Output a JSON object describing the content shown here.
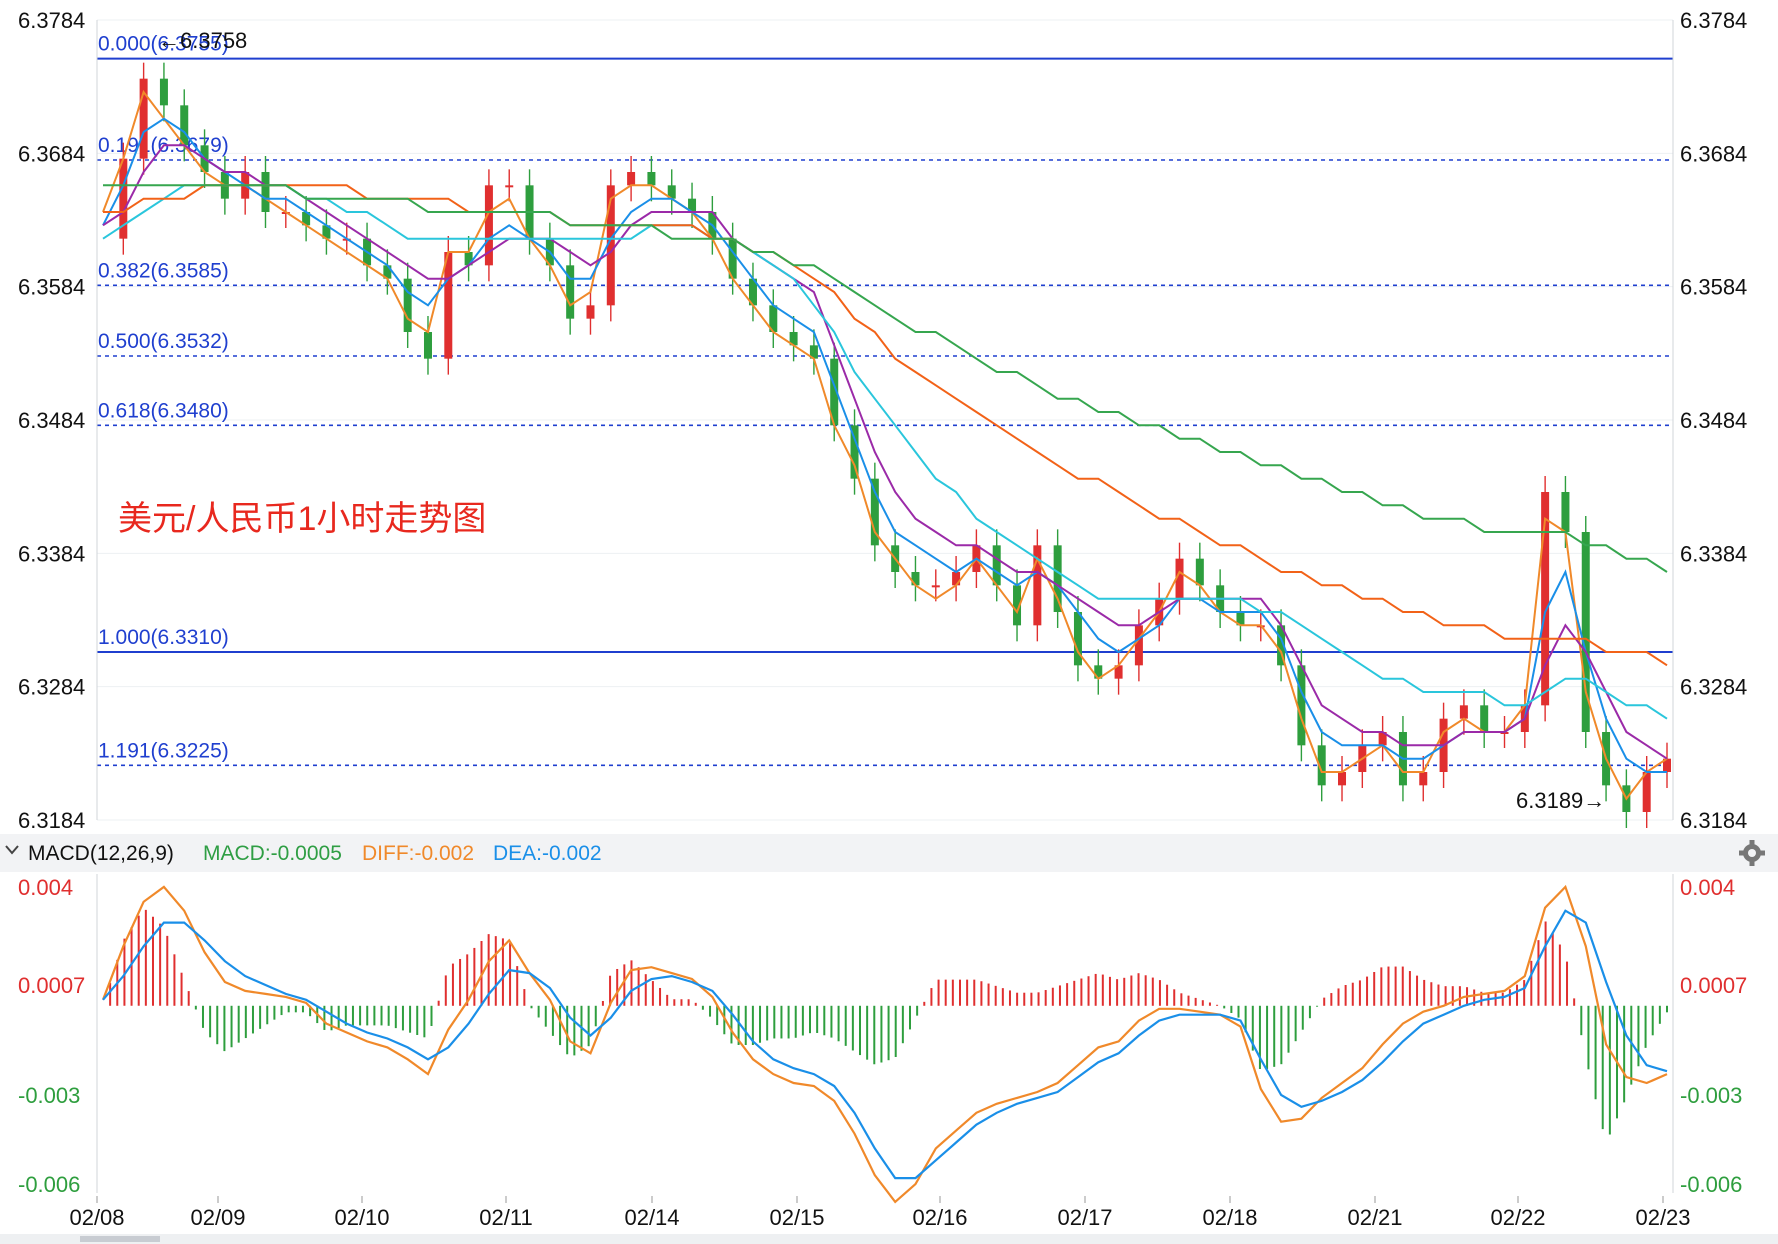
{
  "chart_data": {
    "type": "candlestick",
    "title": "美元/人民币1小时走势图",
    "price_axis": {
      "ticks": [
        "6.3784",
        "6.3684",
        "6.3584",
        "6.3484",
        "6.3384",
        "6.3284",
        "6.3184"
      ],
      "tick_values": [
        6.3784,
        6.3684,
        6.3584,
        6.3484,
        6.3384,
        6.3284,
        6.3184
      ],
      "range": [
        6.3184,
        6.3784
      ]
    },
    "date_axis": {
      "ticks": [
        "02/08",
        "02/09",
        "02/10",
        "02/11",
        "02/14",
        "02/15",
        "02/16",
        "02/17",
        "02/18",
        "02/21",
        "02/22",
        "02/23"
      ]
    },
    "fibonacci": [
      {
        "label": "0.000(6.3755)",
        "level": 6.3755,
        "style": "solid"
      },
      {
        "label": "0.191(6.3679)",
        "level": 6.3679,
        "style": "dashed"
      },
      {
        "label": "0.382(6.3585)",
        "level": 6.3585,
        "style": "dashed"
      },
      {
        "label": "0.500(6.3532)",
        "level": 6.3532,
        "style": "dashed"
      },
      {
        "label": "0.618(6.3480)",
        "level": 6.348,
        "style": "dashed"
      },
      {
        "label": "1.000(6.3310)",
        "level": 6.331,
        "style": "solid"
      },
      {
        "label": "1.191(6.3225)",
        "level": 6.3225,
        "style": "dashed"
      }
    ],
    "annotations": {
      "high": "←6.3758",
      "low": "6.3189→"
    },
    "moving_averages": [
      {
        "color": "#f0892a",
        "values": [
          6.364,
          6.368,
          6.373,
          6.371,
          6.369,
          6.367,
          6.366,
          6.366,
          6.365,
          6.364,
          6.363,
          6.362,
          6.361,
          6.36,
          6.359,
          6.356,
          6.355,
          6.361,
          6.361,
          6.364,
          6.365,
          6.362,
          6.36,
          6.357,
          6.358,
          6.365,
          6.366,
          6.366,
          6.365,
          6.364,
          6.362,
          6.359,
          6.357,
          6.355,
          6.354,
          6.353,
          6.348,
          6.345,
          6.34,
          6.338,
          6.336,
          6.335,
          6.336,
          6.338,
          6.336,
          6.334,
          6.338,
          6.335,
          6.331,
          6.329,
          6.33,
          6.332,
          6.334,
          6.337,
          6.336,
          6.334,
          6.333,
          6.333,
          6.331,
          6.326,
          6.322,
          6.322,
          6.323,
          6.324,
          6.322,
          6.322,
          6.325,
          6.326,
          6.325,
          6.325,
          6.327,
          6.341,
          6.34,
          6.328,
          6.323,
          6.32,
          6.322,
          6.323
        ]
      },
      {
        "color": "#1a8fe8",
        "values": [
          6.363,
          6.366,
          6.37,
          6.371,
          6.37,
          6.368,
          6.367,
          6.366,
          6.365,
          6.365,
          6.364,
          6.363,
          6.362,
          6.361,
          6.36,
          6.358,
          6.357,
          6.359,
          6.36,
          6.362,
          6.363,
          6.362,
          6.361,
          6.359,
          6.359,
          6.362,
          6.364,
          6.365,
          6.365,
          6.364,
          6.363,
          6.361,
          6.359,
          6.357,
          6.356,
          6.355,
          6.351,
          6.347,
          6.343,
          6.34,
          6.339,
          6.338,
          6.337,
          6.338,
          6.337,
          6.336,
          6.337,
          6.336,
          6.334,
          6.332,
          6.331,
          6.332,
          6.333,
          6.335,
          6.335,
          6.334,
          6.334,
          6.334,
          6.332,
          6.328,
          6.325,
          6.324,
          6.324,
          6.324,
          6.323,
          6.323,
          6.324,
          6.325,
          6.325,
          6.325,
          6.326,
          6.334,
          6.337,
          6.331,
          6.326,
          6.323,
          6.322,
          6.322
        ]
      },
      {
        "color": "#9b2aa8",
        "values": [
          6.363,
          6.364,
          6.367,
          6.369,
          6.369,
          6.368,
          6.367,
          6.367,
          6.366,
          6.366,
          6.365,
          6.364,
          6.363,
          6.362,
          6.361,
          6.36,
          6.359,
          6.359,
          6.36,
          6.361,
          6.362,
          6.362,
          6.362,
          6.361,
          6.36,
          6.361,
          6.363,
          6.364,
          6.364,
          6.364,
          6.364,
          6.362,
          6.361,
          6.36,
          6.359,
          6.358,
          6.354,
          6.35,
          6.346,
          6.343,
          6.341,
          6.34,
          6.339,
          6.339,
          6.338,
          6.337,
          6.337,
          6.336,
          6.335,
          6.334,
          6.333,
          6.333,
          6.334,
          6.335,
          6.335,
          6.335,
          6.335,
          6.335,
          6.333,
          6.33,
          6.327,
          6.326,
          6.325,
          6.325,
          6.324,
          6.324,
          6.324,
          6.325,
          6.325,
          6.325,
          6.326,
          6.33,
          6.333,
          6.331,
          6.328,
          6.325,
          6.324,
          6.323
        ]
      },
      {
        "color": "#2ac6dc",
        "values": [
          6.362,
          6.363,
          6.364,
          6.365,
          6.366,
          6.366,
          6.366,
          6.366,
          6.366,
          6.366,
          6.365,
          6.365,
          6.364,
          6.364,
          6.363,
          6.362,
          6.362,
          6.362,
          6.362,
          6.362,
          6.362,
          6.362,
          6.362,
          6.362,
          6.362,
          6.362,
          6.362,
          6.363,
          6.363,
          6.363,
          6.362,
          6.362,
          6.361,
          6.36,
          6.359,
          6.357,
          6.355,
          6.352,
          6.35,
          6.348,
          6.346,
          6.344,
          6.343,
          6.341,
          6.34,
          6.339,
          6.338,
          6.337,
          6.336,
          6.335,
          6.335,
          6.335,
          6.335,
          6.335,
          6.335,
          6.335,
          6.335,
          6.334,
          6.334,
          6.333,
          6.332,
          6.331,
          6.33,
          6.329,
          6.329,
          6.328,
          6.328,
          6.328,
          6.328,
          6.327,
          6.327,
          6.328,
          6.329,
          6.329,
          6.328,
          6.327,
          6.327,
          6.326
        ]
      },
      {
        "color": "#f26218",
        "values": [
          6.364,
          6.364,
          6.365,
          6.365,
          6.365,
          6.366,
          6.366,
          6.366,
          6.366,
          6.366,
          6.366,
          6.366,
          6.366,
          6.365,
          6.365,
          6.365,
          6.365,
          6.365,
          6.364,
          6.364,
          6.364,
          6.364,
          6.364,
          6.363,
          6.363,
          6.363,
          6.363,
          6.363,
          6.363,
          6.363,
          6.362,
          6.362,
          6.361,
          6.361,
          6.36,
          6.359,
          6.358,
          6.356,
          6.355,
          6.353,
          6.352,
          6.351,
          6.35,
          6.349,
          6.348,
          6.347,
          6.346,
          6.345,
          6.344,
          6.344,
          6.343,
          6.342,
          6.341,
          6.341,
          6.34,
          6.339,
          6.339,
          6.338,
          6.337,
          6.337,
          6.336,
          6.336,
          6.335,
          6.335,
          6.334,
          6.334,
          6.333,
          6.333,
          6.333,
          6.332,
          6.332,
          6.332,
          6.332,
          6.332,
          6.331,
          6.331,
          6.331,
          6.33
        ]
      },
      {
        "color": "#36a64f",
        "values": [
          6.366,
          6.366,
          6.366,
          6.366,
          6.366,
          6.366,
          6.366,
          6.366,
          6.366,
          6.366,
          6.365,
          6.365,
          6.365,
          6.365,
          6.365,
          6.365,
          6.364,
          6.364,
          6.364,
          6.364,
          6.364,
          6.364,
          6.364,
          6.363,
          6.363,
          6.363,
          6.363,
          6.363,
          6.362,
          6.362,
          6.362,
          6.362,
          6.361,
          6.361,
          6.36,
          6.36,
          6.359,
          6.358,
          6.357,
          6.356,
          6.355,
          6.355,
          6.354,
          6.353,
          6.352,
          6.352,
          6.351,
          6.35,
          6.35,
          6.349,
          6.349,
          6.348,
          6.348,
          6.347,
          6.347,
          6.346,
          6.346,
          6.345,
          6.345,
          6.344,
          6.344,
          6.343,
          6.343,
          6.342,
          6.342,
          6.341,
          6.341,
          6.341,
          6.34,
          6.34,
          6.34,
          6.34,
          6.34,
          6.339,
          6.339,
          6.338,
          6.338,
          6.337
        ]
      }
    ],
    "ohlc_close": [
      6.362,
      6.368,
      6.374,
      6.372,
      6.369,
      6.367,
      6.365,
      6.367,
      6.364,
      6.364,
      6.363,
      6.362,
      6.362,
      6.36,
      6.359,
      6.355,
      6.353,
      6.361,
      6.36,
      6.366,
      6.366,
      6.362,
      6.36,
      6.356,
      6.357,
      6.366,
      6.367,
      6.366,
      6.365,
      6.364,
      6.362,
      6.359,
      6.357,
      6.355,
      6.354,
      6.353,
      6.348,
      6.344,
      6.339,
      6.337,
      6.336,
      6.336,
      6.337,
      6.339,
      6.336,
      6.333,
      6.339,
      6.334,
      6.33,
      6.329,
      6.33,
      6.333,
      6.335,
      6.338,
      6.336,
      6.334,
      6.333,
      6.333,
      6.33,
      6.324,
      6.321,
      6.322,
      6.324,
      6.325,
      6.321,
      6.322,
      6.326,
      6.327,
      6.325,
      6.325,
      6.327,
      6.343,
      6.34,
      6.325,
      6.321,
      6.319,
      6.322,
      6.323
    ],
    "macd_panel": {
      "header": "MACD(12,26,9)",
      "macd_text": "MACD:-0.0005",
      "diff_text": "DIFF:-0.002",
      "dea_text": "DEA:-0.002",
      "ticks": [
        "0.004",
        "0.0007",
        "-0.003",
        "-0.006"
      ],
      "tick_values": [
        0.004,
        0.0007,
        -0.003,
        -0.006
      ],
      "diff": [
        0.0002,
        0.002,
        0.0035,
        0.004,
        0.0032,
        0.0018,
        0.0008,
        0.0005,
        0.0004,
        0.0003,
        0.0001,
        -0.0006,
        -0.0009,
        -0.0012,
        -0.0014,
        -0.0018,
        -0.0023,
        -0.0008,
        0.0002,
        0.0015,
        0.0022,
        0.0011,
        0.0002,
        -0.0012,
        -0.0016,
        0.0001,
        0.0012,
        0.0013,
        0.0011,
        0.0009,
        0.0003,
        -0.0009,
        -0.0018,
        -0.0023,
        -0.0026,
        -0.0027,
        -0.0032,
        -0.0043,
        -0.0057,
        -0.0066,
        -0.006,
        -0.0048,
        -0.0042,
        -0.0036,
        -0.0033,
        -0.0031,
        -0.0029,
        -0.0026,
        -0.002,
        -0.0014,
        -0.0012,
        -0.0005,
        -0.0001,
        -0.0001,
        -0.0002,
        -0.0003,
        -0.0007,
        -0.0028,
        -0.0039,
        -0.0038,
        -0.0031,
        -0.0026,
        -0.0021,
        -0.0013,
        -0.0006,
        -0.0002,
        0.0,
        0.0003,
        0.0004,
        0.0005,
        0.001,
        0.0033,
        0.004,
        0.002,
        -0.0013,
        -0.0024,
        -0.0026,
        -0.0023
      ],
      "dea": [
        0.0002,
        0.001,
        0.002,
        0.0028,
        0.0028,
        0.0022,
        0.0015,
        0.001,
        0.0007,
        0.0004,
        0.0002,
        -0.0002,
        -0.0006,
        -0.0009,
        -0.0011,
        -0.0014,
        -0.0018,
        -0.0014,
        -0.0006,
        0.0004,
        0.0012,
        0.0011,
        0.0006,
        -0.0004,
        -0.001,
        -0.0004,
        0.0005,
        0.0009,
        0.001,
        0.0008,
        0.0005,
        -0.0003,
        -0.0012,
        -0.0018,
        -0.0021,
        -0.0023,
        -0.0027,
        -0.0036,
        -0.0048,
        -0.0058,
        -0.0058,
        -0.0052,
        -0.0046,
        -0.004,
        -0.0036,
        -0.0033,
        -0.0031,
        -0.0029,
        -0.0024,
        -0.0019,
        -0.0016,
        -0.001,
        -0.0005,
        -0.0003,
        -0.0003,
        -0.0003,
        -0.0005,
        -0.0018,
        -0.003,
        -0.0034,
        -0.0032,
        -0.0029,
        -0.0025,
        -0.0019,
        -0.0012,
        -0.0006,
        -0.0003,
        0.0,
        0.0002,
        0.0003,
        0.0006,
        0.002,
        0.0032,
        0.0028,
        0.0008,
        -0.001,
        -0.002,
        -0.0022
      ]
    }
  }
}
